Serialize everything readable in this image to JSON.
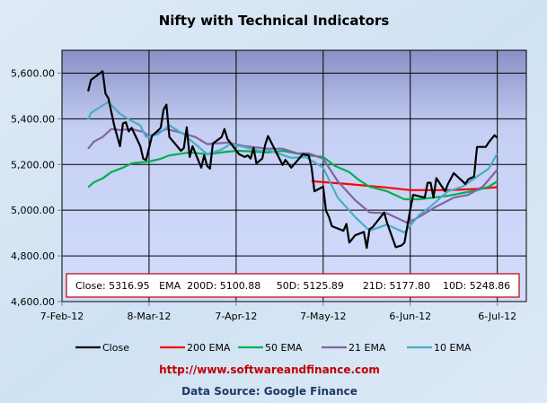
{
  "chart_data": {
    "type": "line",
    "title": "Nifty with Technical Indicators",
    "xlabel": "",
    "ylabel": "",
    "x_ticks": [
      "7-Feb-12",
      "8-Mar-12",
      "7-Apr-12",
      "7-May-12",
      "6-Jun-12",
      "6-Jul-12"
    ],
    "x_tick_dates": [
      "2012-02-07",
      "2012-03-08",
      "2012-04-07",
      "2012-05-07",
      "2012-06-06",
      "2012-07-06"
    ],
    "xlim": [
      "2012-02-07",
      "2012-07-16"
    ],
    "y_ticks": [
      "4,600.00",
      "4,800.00",
      "5,000.00",
      "5,200.00",
      "5,400.00",
      "5,600.00"
    ],
    "y_tick_values": [
      4600,
      4800,
      5000,
      5200,
      5400,
      5600
    ],
    "ylim": [
      4600,
      5700
    ],
    "grid": true,
    "legend_placement": "bottom",
    "annotation": "Close: 5316.95   EMA  200D: 5100.88     50D: 5125.89      21D: 5177.80    10D: 5248.86",
    "series": [
      {
        "name": "Close",
        "color": "#000000",
        "points": [
          [
            "2012-02-16",
            5520
          ],
          [
            "2012-02-17",
            5570
          ],
          [
            "2012-02-21",
            5608
          ],
          [
            "2012-02-22",
            5510
          ],
          [
            "2012-02-23",
            5490
          ],
          [
            "2012-02-25",
            5370
          ],
          [
            "2012-02-27",
            5280
          ],
          [
            "2012-02-28",
            5380
          ],
          [
            "2012-02-29",
            5385
          ],
          [
            "2012-03-01",
            5345
          ],
          [
            "2012-03-02",
            5360
          ],
          [
            "2012-03-05",
            5280
          ],
          [
            "2012-03-06",
            5225
          ],
          [
            "2012-03-07",
            5220
          ],
          [
            "2012-03-09",
            5325
          ],
          [
            "2012-03-12",
            5360
          ],
          [
            "2012-03-13",
            5440
          ],
          [
            "2012-03-14",
            5462
          ],
          [
            "2012-03-15",
            5320
          ],
          [
            "2012-03-19",
            5260
          ],
          [
            "2012-03-20",
            5272
          ],
          [
            "2012-03-21",
            5363
          ],
          [
            "2012-03-22",
            5233
          ],
          [
            "2012-03-23",
            5280
          ],
          [
            "2012-03-26",
            5186
          ],
          [
            "2012-03-27",
            5240
          ],
          [
            "2012-03-28",
            5194
          ],
          [
            "2012-03-29",
            5182
          ],
          [
            "2012-03-30",
            5292
          ],
          [
            "2012-04-02",
            5320
          ],
          [
            "2012-04-03",
            5355
          ],
          [
            "2012-04-04",
            5312
          ],
          [
            "2012-04-08",
            5245
          ],
          [
            "2012-04-10",
            5233
          ],
          [
            "2012-04-11",
            5240
          ],
          [
            "2012-04-12",
            5226
          ],
          [
            "2012-04-13",
            5272
          ],
          [
            "2012-04-14",
            5205
          ],
          [
            "2012-04-16",
            5226
          ],
          [
            "2012-04-17",
            5285
          ],
          [
            "2012-04-18",
            5325
          ],
          [
            "2012-04-23",
            5198
          ],
          [
            "2012-04-24",
            5220
          ],
          [
            "2012-04-26",
            5186
          ],
          [
            "2012-04-30",
            5245
          ],
          [
            "2012-05-02",
            5240
          ],
          [
            "2012-05-03",
            5186
          ],
          [
            "2012-05-04",
            5083
          ],
          [
            "2012-05-07",
            5103
          ],
          [
            "2012-05-08",
            4997
          ],
          [
            "2012-05-09",
            4970
          ],
          [
            "2012-05-10",
            4930
          ],
          [
            "2012-05-14",
            4910
          ],
          [
            "2012-05-15",
            4940
          ],
          [
            "2012-05-16",
            4858
          ],
          [
            "2012-05-18",
            4890
          ],
          [
            "2012-05-21",
            4905
          ],
          [
            "2012-05-22",
            4835
          ],
          [
            "2012-05-23",
            4918
          ],
          [
            "2012-05-24",
            4925
          ],
          [
            "2012-05-28",
            4990
          ],
          [
            "2012-05-29",
            4945
          ],
          [
            "2012-06-01",
            4838
          ],
          [
            "2012-06-03",
            4846
          ],
          [
            "2012-06-04",
            4858
          ],
          [
            "2012-06-06",
            5004
          ],
          [
            "2012-06-07",
            5067
          ],
          [
            "2012-06-11",
            5055
          ],
          [
            "2012-06-12",
            5120
          ],
          [
            "2012-06-13",
            5120
          ],
          [
            "2012-06-14",
            5055
          ],
          [
            "2012-06-15",
            5140
          ],
          [
            "2012-06-18",
            5083
          ],
          [
            "2012-06-19",
            5115
          ],
          [
            "2012-06-21",
            5162
          ],
          [
            "2012-06-25",
            5115
          ],
          [
            "2012-06-26",
            5135
          ],
          [
            "2012-06-28",
            5147
          ],
          [
            "2012-06-29",
            5277
          ],
          [
            "2012-07-02",
            5277
          ],
          [
            "2012-07-03",
            5296
          ],
          [
            "2012-07-05",
            5328
          ],
          [
            "2012-07-06",
            5316.95
          ]
        ]
      },
      {
        "name": "200 EMA",
        "color": "#ff0000",
        "points": [
          [
            "2012-05-03",
            5127
          ],
          [
            "2012-05-15",
            5115
          ],
          [
            "2012-05-28",
            5100
          ],
          [
            "2012-06-06",
            5088
          ],
          [
            "2012-06-20",
            5088
          ],
          [
            "2012-06-29",
            5093
          ],
          [
            "2012-07-06",
            5100.88
          ]
        ]
      },
      {
        "name": "50 EMA",
        "color": "#00b050",
        "points": [
          [
            "2012-02-16",
            5100
          ],
          [
            "2012-02-18",
            5122
          ],
          [
            "2012-02-21",
            5139
          ],
          [
            "2012-02-24",
            5167
          ],
          [
            "2012-02-28",
            5186
          ],
          [
            "2012-03-02",
            5205
          ],
          [
            "2012-03-08",
            5213
          ],
          [
            "2012-03-12",
            5225
          ],
          [
            "2012-03-15",
            5240
          ],
          [
            "2012-03-22",
            5253
          ],
          [
            "2012-03-28",
            5245
          ],
          [
            "2012-04-04",
            5256
          ],
          [
            "2012-04-08",
            5260
          ],
          [
            "2012-04-14",
            5256
          ],
          [
            "2012-04-18",
            5253
          ],
          [
            "2012-04-23",
            5260
          ],
          [
            "2012-05-01",
            5241
          ],
          [
            "2012-05-07",
            5233
          ],
          [
            "2012-05-11",
            5194
          ],
          [
            "2012-05-16",
            5167
          ],
          [
            "2012-05-19",
            5135
          ],
          [
            "2012-05-23",
            5103
          ],
          [
            "2012-05-29",
            5083
          ],
          [
            "2012-06-04",
            5048
          ],
          [
            "2012-06-09",
            5048
          ],
          [
            "2012-06-14",
            5055
          ],
          [
            "2012-06-19",
            5063
          ],
          [
            "2012-06-24",
            5075
          ],
          [
            "2012-06-29",
            5087
          ],
          [
            "2012-07-03",
            5103
          ],
          [
            "2012-07-06",
            5125.89
          ]
        ]
      },
      {
        "name": "21 EMA",
        "color": "#8064a2",
        "points": [
          [
            "2012-02-16",
            5269
          ],
          [
            "2012-02-18",
            5300
          ],
          [
            "2012-02-21",
            5320
          ],
          [
            "2012-02-24",
            5355
          ],
          [
            "2012-02-27",
            5351
          ],
          [
            "2012-03-02",
            5355
          ],
          [
            "2012-03-06",
            5343
          ],
          [
            "2012-03-08",
            5324
          ],
          [
            "2012-03-14",
            5355
          ],
          [
            "2012-03-18",
            5343
          ],
          [
            "2012-03-24",
            5320
          ],
          [
            "2012-03-28",
            5289
          ],
          [
            "2012-04-04",
            5296
          ],
          [
            "2012-04-10",
            5280
          ],
          [
            "2012-04-18",
            5269
          ],
          [
            "2012-04-23",
            5269
          ],
          [
            "2012-04-28",
            5249
          ],
          [
            "2012-05-02",
            5249
          ],
          [
            "2012-05-07",
            5225
          ],
          [
            "2012-05-12",
            5127
          ],
          [
            "2012-05-18",
            5044
          ],
          [
            "2012-05-23",
            4990
          ],
          [
            "2012-05-29",
            4986
          ],
          [
            "2012-06-05",
            4945
          ],
          [
            "2012-06-09",
            4970
          ],
          [
            "2012-06-15",
            5016
          ],
          [
            "2012-06-21",
            5055
          ],
          [
            "2012-06-26",
            5067
          ],
          [
            "2012-07-01",
            5103
          ],
          [
            "2012-07-06",
            5177.8
          ]
        ]
      },
      {
        "name": "10 EMA",
        "color": "#4bacc6",
        "points": [
          [
            "2012-02-16",
            5398
          ],
          [
            "2012-02-17",
            5426
          ],
          [
            "2012-02-23",
            5474
          ],
          [
            "2012-02-27",
            5422
          ],
          [
            "2012-03-01",
            5398
          ],
          [
            "2012-03-05",
            5371
          ],
          [
            "2012-03-07",
            5320
          ],
          [
            "2012-03-11",
            5332
          ],
          [
            "2012-03-15",
            5371
          ],
          [
            "2012-03-20",
            5332
          ],
          [
            "2012-03-28",
            5245
          ],
          [
            "2012-04-02",
            5265
          ],
          [
            "2012-04-05",
            5289
          ],
          [
            "2012-04-10",
            5276
          ],
          [
            "2012-04-15",
            5260
          ],
          [
            "2012-04-18",
            5264
          ],
          [
            "2012-04-26",
            5229
          ],
          [
            "2012-05-01",
            5233
          ],
          [
            "2012-05-07",
            5186
          ],
          [
            "2012-05-12",
            5055
          ],
          [
            "2012-05-18",
            4970
          ],
          [
            "2012-05-23",
            4910
          ],
          [
            "2012-05-29",
            4937
          ],
          [
            "2012-06-04",
            4902
          ],
          [
            "2012-06-09",
            4978
          ],
          [
            "2012-06-13",
            5016
          ],
          [
            "2012-06-19",
            5083
          ],
          [
            "2012-06-24",
            5103
          ],
          [
            "2012-06-29",
            5147
          ],
          [
            "2012-07-03",
            5182
          ],
          [
            "2012-07-06",
            5248.86
          ]
        ]
      }
    ]
  },
  "footer": {
    "url": "http://www.softwareandfinance.com",
    "url_color": "#c00000",
    "source": "Data Source: Google Finance",
    "source_color": "#1f3864"
  }
}
